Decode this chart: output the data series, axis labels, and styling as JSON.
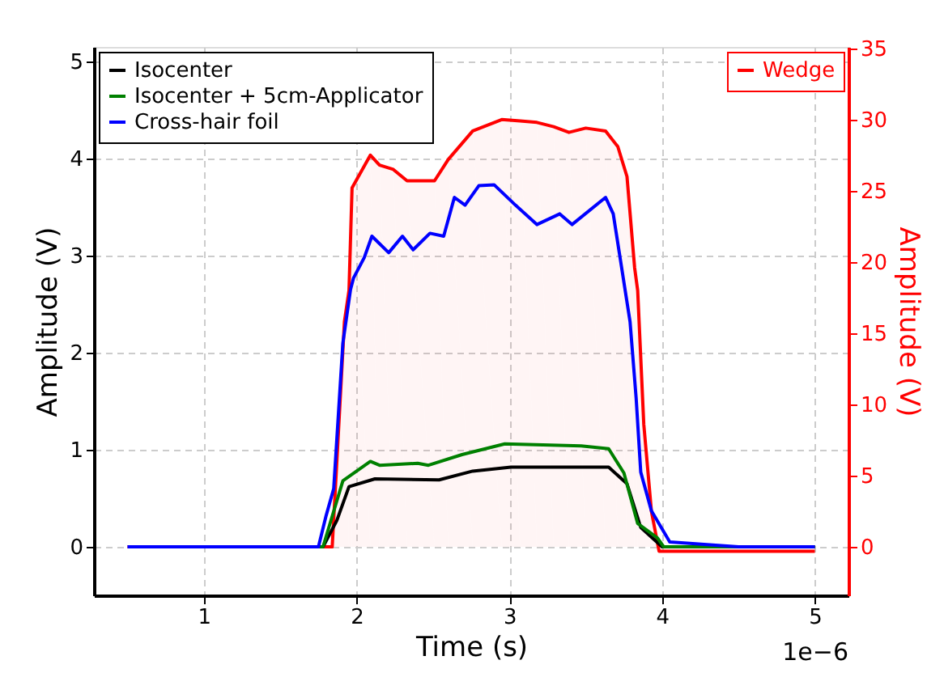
{
  "chart_data": {
    "type": "line",
    "xlabel": "Time (s)",
    "ylabel": "Amplitude (V)",
    "y2label": "Amplitude (V)",
    "xlim": [
      0.28,
      5.22
    ],
    "xticks": [
      1,
      2,
      3,
      4,
      5
    ],
    "ylim": [
      -0.5,
      5.15
    ],
    "yticks": [
      0,
      1,
      2,
      3,
      4,
      5
    ],
    "y2lim": [
      -3.4,
      35.1
    ],
    "y2ticks": [
      0,
      5,
      10,
      15,
      20,
      25,
      30,
      35
    ],
    "grid": true,
    "legend": "top left",
    "line_style": "solid",
    "marker": "none",
    "annotations": [
      "1e−6"
    ],
    "series": [
      {
        "name": "Isocenter",
        "color": "#000000",
        "x": [
          1.5,
          1.78,
          1.87,
          1.95,
          2.12,
          2.54,
          2.76,
          3.01,
          3.65,
          3.77,
          3.86,
          4.0,
          4.5,
          5.0
        ],
        "values": [
          0,
          0,
          0.27,
          0.62,
          0.7,
          0.69,
          0.78,
          0.82,
          0.82,
          0.65,
          0.2,
          0,
          0,
          0
        ]
      },
      {
        "name": "Isocenter + 5cm-Applicator",
        "color": "#008000",
        "x": [
          1.5,
          1.78,
          1.91,
          2.09,
          2.15,
          2.4,
          2.47,
          2.69,
          2.97,
          3.47,
          3.65,
          3.75,
          3.84,
          3.97,
          4.01,
          4.5,
          5.0
        ],
        "values": [
          0,
          0,
          0.68,
          0.88,
          0.84,
          0.86,
          0.84,
          0.95,
          1.06,
          1.04,
          1.01,
          0.76,
          0.24,
          0.09,
          0,
          0,
          0
        ]
      },
      {
        "name": "Cross-hair foil",
        "color": "#0000ff",
        "x": [
          0.5,
          1.0,
          1.5,
          1.75,
          1.8,
          1.85,
          1.91,
          1.96,
          1.98,
          2.05,
          2.1,
          2.21,
          2.3,
          2.37,
          2.48,
          2.57,
          2.64,
          2.71,
          2.8,
          2.9,
          3.04,
          3.18,
          3.33,
          3.41,
          3.63,
          3.68,
          3.79,
          3.83,
          3.86,
          3.93,
          4.05,
          4.5,
          5.0
        ],
        "values": [
          0,
          0,
          0,
          0,
          0.32,
          0.6,
          2.1,
          2.65,
          2.77,
          2.98,
          3.2,
          3.03,
          3.2,
          3.06,
          3.23,
          3.2,
          3.6,
          3.52,
          3.72,
          3.73,
          3.52,
          3.32,
          3.43,
          3.32,
          3.6,
          3.43,
          2.32,
          1.53,
          0.77,
          0.37,
          0.05,
          0,
          0
        ]
      },
      {
        "name": "Wedge",
        "color": "#ff0000",
        "type": "area",
        "axis": "y2",
        "x": [
          0.5,
          1.0,
          1.5,
          1.84,
          1.92,
          1.95,
          1.97,
          2.09,
          2.15,
          2.24,
          2.33,
          2.51,
          2.6,
          2.76,
          2.95,
          3.07,
          3.18,
          3.29,
          3.39,
          3.5,
          3.63,
          3.71,
          3.77,
          3.82,
          3.84,
          3.88,
          3.93,
          3.98,
          4.5,
          5.0
        ],
        "values": [
          0,
          0,
          0,
          0,
          15.8,
          18,
          25.2,
          27.5,
          26.8,
          26.5,
          25.7,
          25.7,
          27.2,
          29.2,
          30.0,
          29.9,
          29.8,
          29.5,
          29.1,
          29.4,
          29.2,
          28.1,
          26.0,
          19.6,
          18,
          8.6,
          2.5,
          -0.3,
          -0.3,
          -0.3
        ]
      }
    ]
  }
}
